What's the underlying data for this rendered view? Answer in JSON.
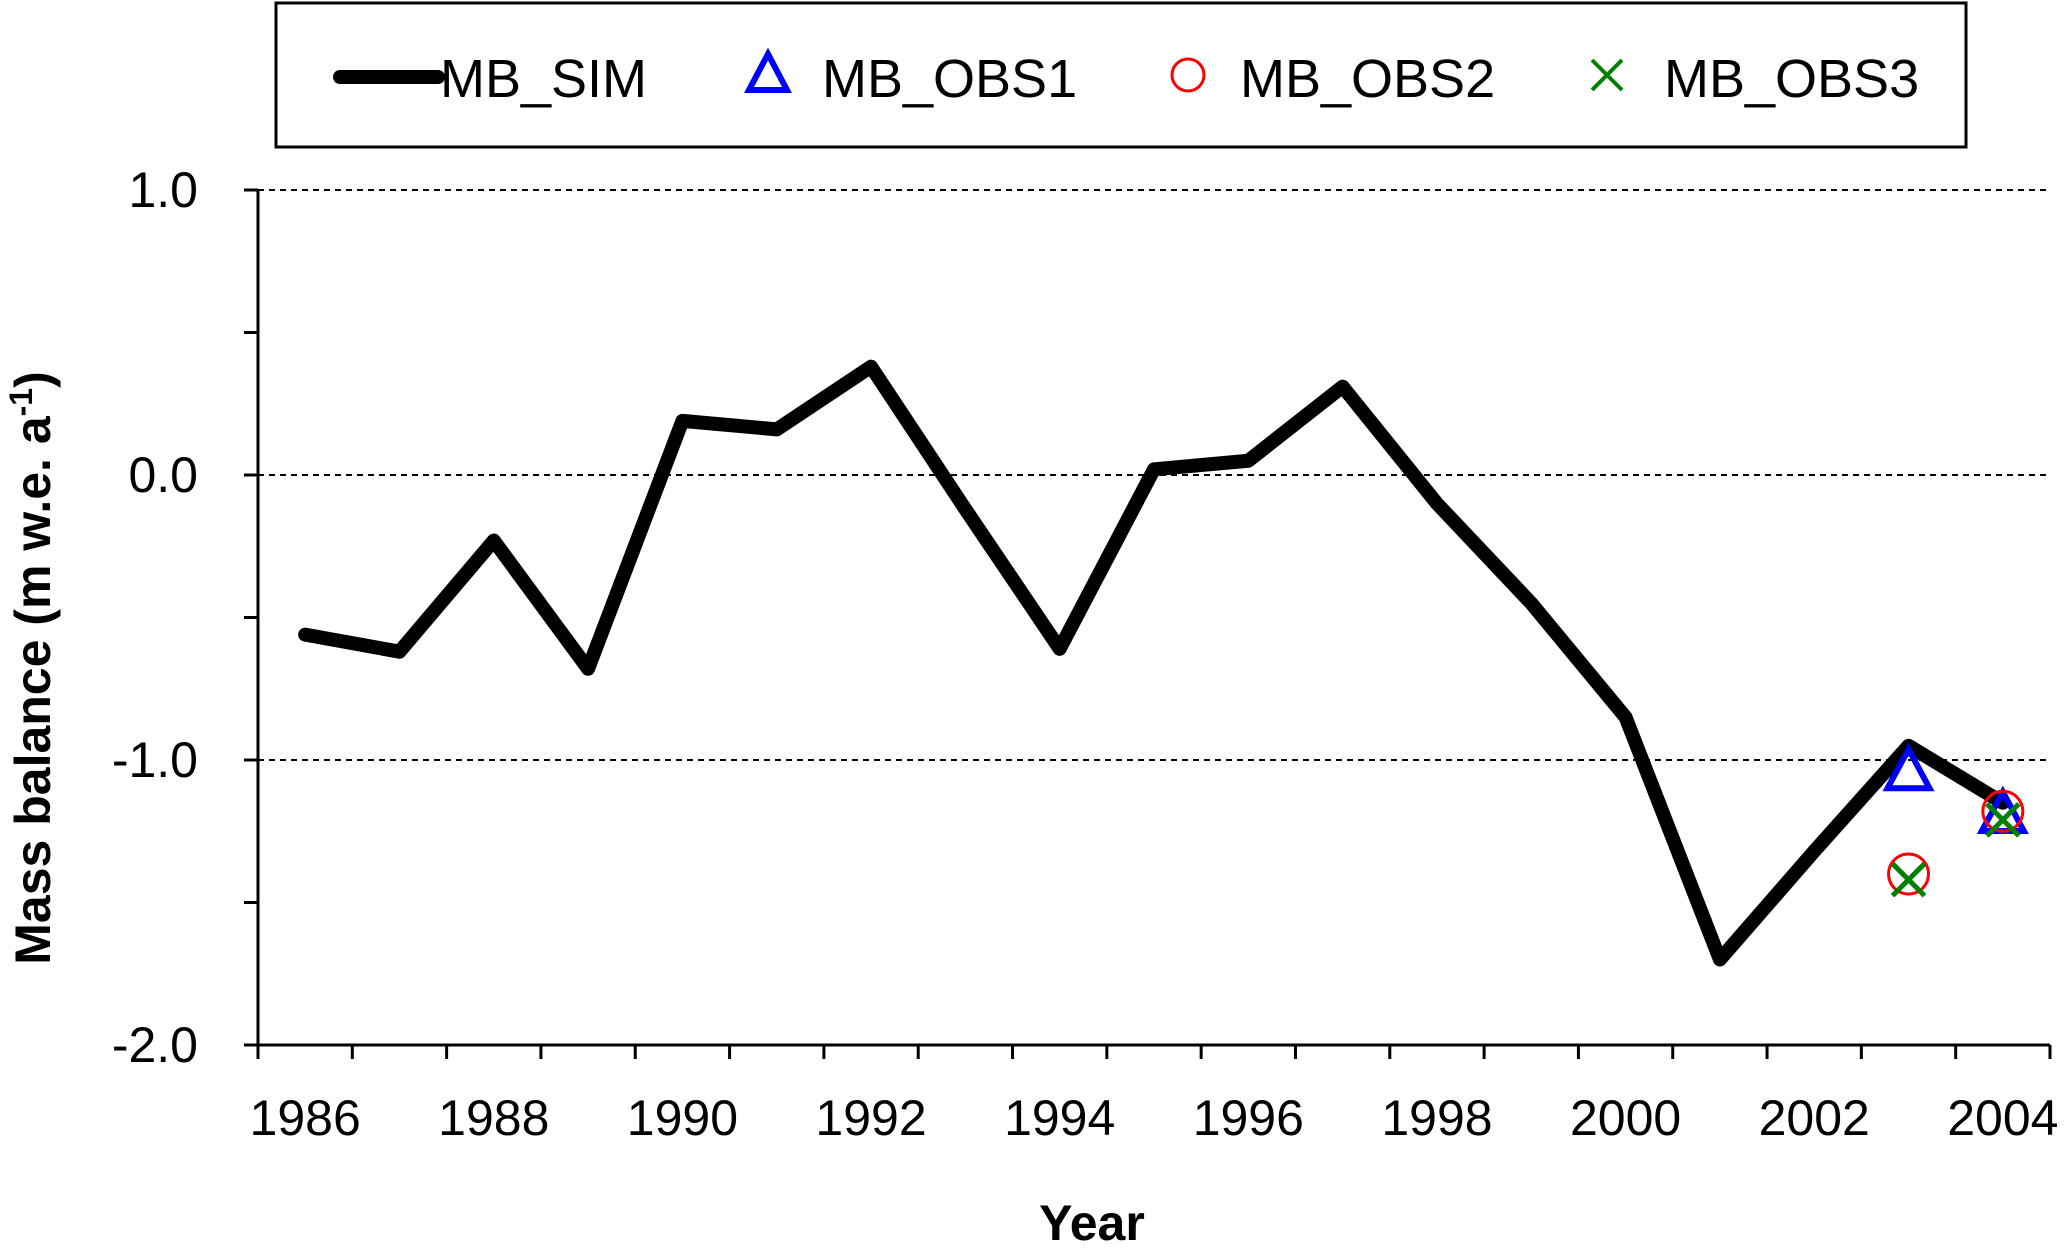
{
  "chart_data": {
    "type": "line",
    "title": "",
    "xlabel": "Year",
    "ylabel_main": "Mass balance (m w.e. a",
    "ylabel_sup": "-1",
    "ylabel_close": ")",
    "xlim": [
      1985.5,
      2004.5
    ],
    "ylim": [
      -2.0,
      1.0
    ],
    "x_ticks": [
      1986,
      1988,
      1990,
      1992,
      1994,
      1996,
      1998,
      2000,
      2002,
      2004
    ],
    "x_tick_labels": [
      "1986",
      "1988",
      "1990",
      "1992",
      "1994",
      "1996",
      "1998",
      "2000",
      "2002",
      "2004"
    ],
    "y_ticks": [
      1.0,
      0.0,
      -1.0,
      -2.0
    ],
    "y_tick_labels": [
      "1.0",
      "0.0",
      "-1.0",
      "-2.0"
    ],
    "gridlines_y": [
      1.0,
      0.0,
      -1.0
    ],
    "legend_position": "top",
    "series": [
      {
        "name": "MB_SIM",
        "style": "line",
        "color": "#000000",
        "x": [
          1986,
          1987,
          1988,
          1989,
          1990,
          1991,
          1992,
          1993,
          1994,
          1995,
          1996,
          1997,
          1998,
          1999,
          2000,
          2001,
          2002,
          2003,
          2004
        ],
        "y": [
          -0.56,
          -0.62,
          -0.23,
          -0.68,
          0.19,
          0.16,
          0.38,
          -0.12,
          -0.61,
          0.02,
          0.05,
          0.31,
          -0.1,
          -0.45,
          -0.85,
          -1.7,
          -1.32,
          -0.95,
          -1.15
        ]
      },
      {
        "name": "MB_OBS1",
        "style": "triangle",
        "color": "#0000ff",
        "x": [
          2003,
          2004
        ],
        "y": [
          -1.05,
          -1.2
        ]
      },
      {
        "name": "MB_OBS2",
        "style": "circle",
        "color": "#ff0000",
        "x": [
          2003,
          2004
        ],
        "y": [
          -1.4,
          -1.18
        ]
      },
      {
        "name": "MB_OBS3",
        "style": "cross",
        "color": "#008000",
        "x": [
          2003,
          2004
        ],
        "y": [
          -1.42,
          -1.21
        ]
      }
    ]
  }
}
